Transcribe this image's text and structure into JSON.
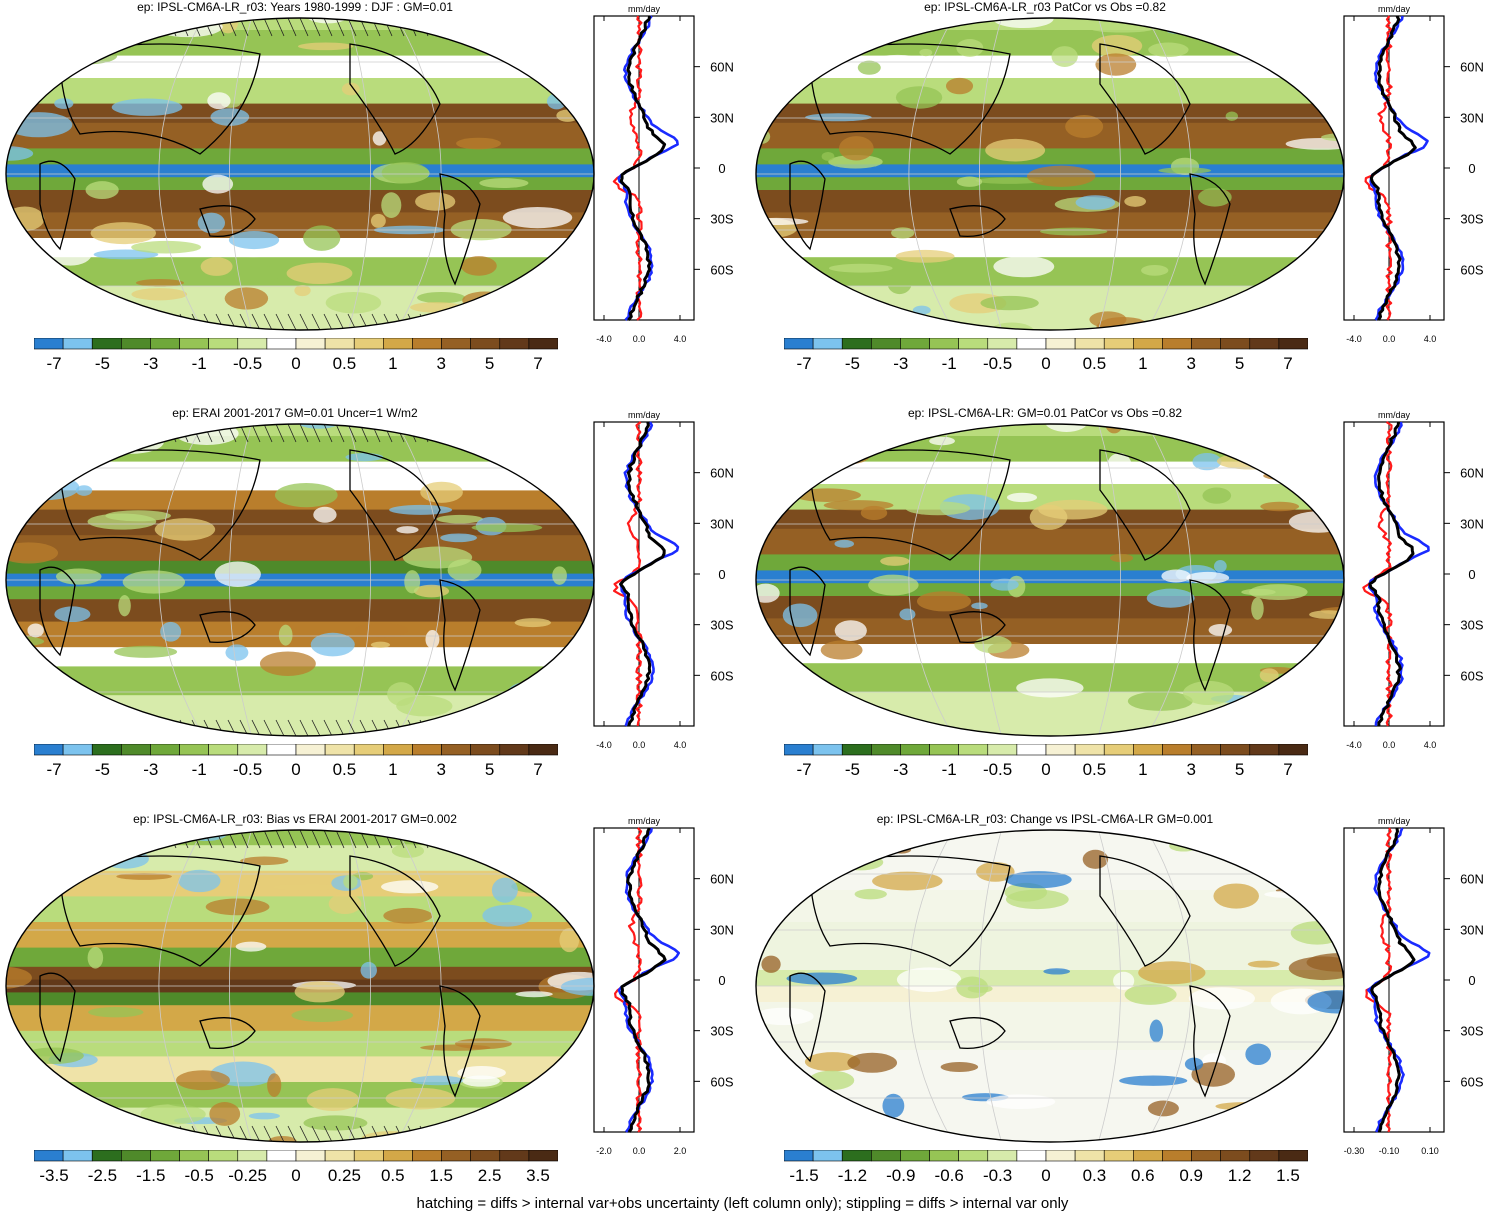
{
  "palette_colors": [
    "#2a7fd0",
    "#7cc3ee",
    "#2c6e1e",
    "#4f8a2a",
    "#6fa83a",
    "#96c455",
    "#b9dc7c",
    "#d7ebab",
    "#ffffff",
    "#f6f1d4",
    "#efe3a8",
    "#e6cd78",
    "#d3a848",
    "#b97e2c",
    "#956024",
    "#7c4c1e",
    "#62391a",
    "#4a2a14"
  ],
  "series_colors": {
    "red": "#ff1a1a",
    "blue": "#1a2bff",
    "black": "#000000"
  },
  "panels": [
    {
      "title": "ep: IPSL-CM6A-LR_r03: Years 1980-1999 : DJF : GM=0.01",
      "units": "mm/day",
      "lat_labels": [
        "60N",
        "30N",
        "0",
        "30S",
        "60S"
      ],
      "x_ticks": [
        "-4.0",
        "0.0",
        "4.0"
      ],
      "cbar_labels": [
        "-7",
        "-5",
        "-3",
        "-1",
        "-0.5",
        "0",
        "0.5",
        "1",
        "3",
        "5",
        "7"
      ]
    },
    {
      "title": "ep: IPSL-CM6A-LR_r03 PatCor vs Obs =0.82",
      "units": "mm/day",
      "lat_labels": [
        "60N",
        "30N",
        "0",
        "30S",
        "60S"
      ],
      "x_ticks": [
        "-4.0",
        "0.0",
        "4.0"
      ],
      "cbar_labels": [
        "-7",
        "-5",
        "-3",
        "-1",
        "-0.5",
        "0",
        "0.5",
        "1",
        "3",
        "5",
        "7"
      ]
    },
    {
      "title": "ep: ERAI 2001-2017 GM=0.01 Uncer=1 W/m2",
      "units": "mm/day",
      "lat_labels": [
        "60N",
        "30N",
        "0",
        "30S",
        "60S"
      ],
      "x_ticks": [
        "-4.0",
        "0.0",
        "4.0"
      ],
      "cbar_labels": [
        "-7",
        "-5",
        "-3",
        "-1",
        "-0.5",
        "0",
        "0.5",
        "1",
        "3",
        "5",
        "7"
      ]
    },
    {
      "title": "ep: IPSL-CM6A-LR: GM=0.01 PatCor vs Obs =0.82",
      "units": "mm/day",
      "lat_labels": [
        "60N",
        "30N",
        "0",
        "30S",
        "60S"
      ],
      "x_ticks": [
        "-4.0",
        "0.0",
        "4.0"
      ],
      "cbar_labels": [
        "-7",
        "-5",
        "-3",
        "-1",
        "-0.5",
        "0",
        "0.5",
        "1",
        "3",
        "5",
        "7"
      ]
    },
    {
      "title": "ep: IPSL-CM6A-LR_r03: Bias vs ERAI 2001-2017 GM=0.002",
      "units": "mm/day",
      "lat_labels": [
        "60N",
        "30N",
        "0",
        "30S",
        "60S"
      ],
      "x_ticks": [
        "-2.0",
        "0.0",
        "2.0"
      ],
      "cbar_labels": [
        "-3.5",
        "-2.5",
        "-1.5",
        "-0.5",
        "-0.25",
        "0",
        "0.25",
        "0.5",
        "1.5",
        "2.5",
        "3.5"
      ]
    },
    {
      "title": "ep: IPSL-CM6A-LR_r03: Change vs IPSL-CM6A-LR GM=0.001",
      "units": "mm/day",
      "lat_labels": [
        "60N",
        "30N",
        "0",
        "30S",
        "60S"
      ],
      "x_ticks": [
        "-0.30",
        "-0.10",
        "0.10"
      ],
      "cbar_labels": [
        "-1.5",
        "-1.2",
        "-0.9",
        "-0.6",
        "-0.3",
        "0",
        "0.3",
        "0.6",
        "0.9",
        "1.2",
        "1.5"
      ]
    }
  ],
  "footer": "hatching = diffs > internal var+obs uncertainty (left column only); stippling = diffs > internal var only"
}
